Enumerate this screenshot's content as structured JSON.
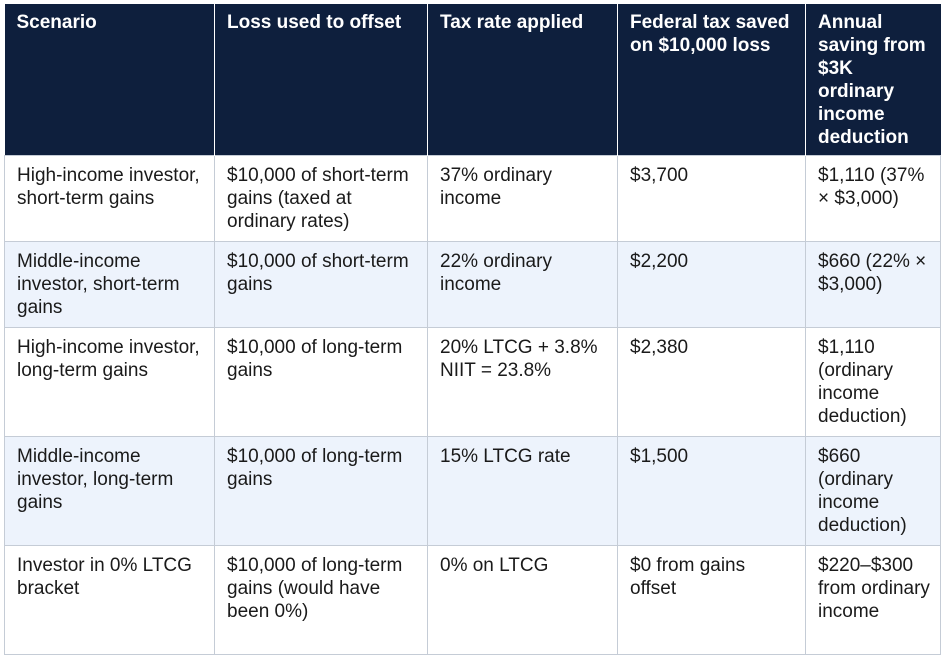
{
  "table": {
    "headers": [
      "Scenario",
      "Loss used to offset",
      "Tax rate applied",
      "Federal tax saved on $10,000 loss",
      "Annual saving from $3K ordinary income deduction"
    ],
    "rows": [
      [
        "High-income investor, short-term gains",
        "$10,000 of short-term gains (taxed at ordinary rates)",
        "37% ordinary income",
        "$3,700",
        "$1,110 (37% × $3,000)"
      ],
      [
        "Middle-income investor, short-term gains",
        "$10,000 of short-term gains",
        "22% ordinary income",
        "$2,200",
        "$660 (22% × $3,000)"
      ],
      [
        "High-income investor, long-term gains",
        "$10,000 of long-term gains",
        "20% LTCG + 3.8% NIIT = 23.8%",
        "$2,380",
        "$1,110 (ordinary income deduction)"
      ],
      [
        "Middle-income investor, long-term gains",
        "$10,000 of long-term gains",
        "15% LTCG rate",
        "$1,500",
        "$660 (ordinary income deduction)"
      ],
      [
        "Investor in 0% LTCG bracket",
        "$10,000 of long-term gains (would have been 0%)",
        "0% on LTCG",
        "$0 from gains offset",
        "$220–$300 from ordinary income"
      ]
    ]
  },
  "colors": {
    "header_bg": "#0e1f3d",
    "header_text": "#ffffff",
    "row_alt_bg": "#edf3fc",
    "border": "#c5ccd6"
  }
}
